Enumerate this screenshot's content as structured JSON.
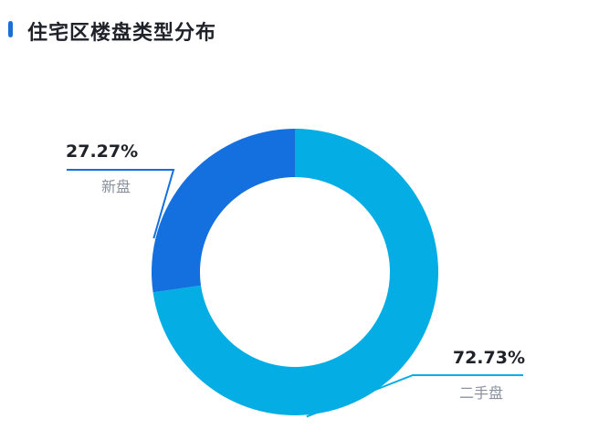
{
  "header": {
    "title": "住宅区楼盘类型分布"
  },
  "colors": {
    "accent": "#1a6fd8",
    "new": "#1470de",
    "second_hand": "#04ade3",
    "label_name": "#8a919f",
    "label_pct": "#1f2329"
  },
  "chart_data": {
    "type": "pie",
    "subtype": "donut",
    "title": "住宅区楼盘类型分布",
    "slices": [
      {
        "name": "新盘",
        "value": 27.27,
        "label": "27.27%",
        "color": "#1470de"
      },
      {
        "name": "二手盘",
        "value": 72.73,
        "label": "72.73%",
        "color": "#04ade3"
      }
    ]
  }
}
